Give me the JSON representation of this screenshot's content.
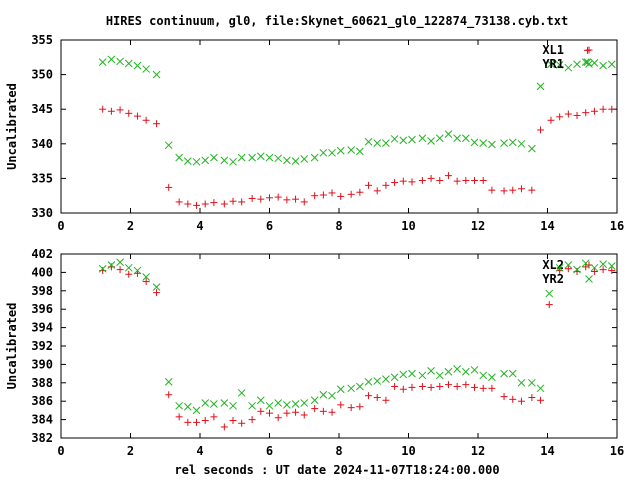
{
  "title": "HIRES continuum, gl0, file:Skynet_60621_gl0_122874_73138.cyb.txt",
  "xlabel": "rel seconds : UT date 2024-11-07T18:24:00.000",
  "colors": {
    "red": "#e0101a",
    "green": "#22b422"
  },
  "chart_data": [
    {
      "type": "scatter",
      "ylabel": "Uncalibrated",
      "xlim": [
        0,
        16
      ],
      "ylim": [
        330,
        355
      ],
      "xticks": [
        0,
        2,
        4,
        6,
        8,
        10,
        12,
        14,
        16
      ],
      "yticks": [
        330,
        335,
        340,
        345,
        350,
        355
      ],
      "legend_position": "top-right",
      "series": [
        {
          "name": "XL1",
          "marker": "plus",
          "color": "red",
          "x": [
            1.2,
            1.45,
            1.7,
            1.95,
            2.2,
            2.45,
            2.75,
            3.1,
            3.4,
            3.65,
            3.9,
            4.15,
            4.4,
            4.7,
            4.95,
            5.2,
            5.5,
            5.75,
            6.0,
            6.25,
            6.5,
            6.75,
            7.0,
            7.3,
            7.55,
            7.8,
            8.05,
            8.35,
            8.6,
            8.85,
            9.1,
            9.35,
            9.6,
            9.85,
            10.1,
            10.4,
            10.65,
            10.9,
            11.15,
            11.4,
            11.65,
            11.9,
            12.15,
            12.4,
            12.75,
            13.0,
            13.25,
            13.55,
            13.8,
            14.1,
            14.35,
            14.6,
            14.85,
            15.1,
            15.35,
            15.6,
            15.85
          ],
          "y": [
            345.0,
            344.7,
            344.9,
            344.4,
            344.0,
            343.4,
            342.9,
            333.7,
            331.6,
            331.3,
            331.1,
            331.3,
            331.5,
            331.3,
            331.7,
            331.6,
            332.1,
            332.0,
            332.2,
            332.3,
            331.9,
            332.0,
            331.6,
            332.5,
            332.6,
            332.9,
            332.4,
            332.7,
            333.0,
            334.0,
            333.2,
            334.0,
            334.4,
            334.6,
            334.5,
            334.7,
            335.0,
            334.7,
            335.4,
            334.6,
            334.7,
            334.7,
            334.7,
            333.3,
            333.2,
            333.3,
            333.5,
            333.3,
            342.0,
            343.4,
            343.9,
            344.3,
            344.1,
            344.5,
            344.7,
            345.0,
            345.0
          ],
          "extra_points": [
            [
              15.15,
              353.5
            ]
          ]
        },
        {
          "name": "YR1",
          "marker": "cross",
          "color": "green",
          "x": [
            1.2,
            1.45,
            1.7,
            1.95,
            2.2,
            2.45,
            2.75,
            3.1,
            3.4,
            3.65,
            3.9,
            4.15,
            4.4,
            4.7,
            4.95,
            5.2,
            5.5,
            5.75,
            6.0,
            6.25,
            6.5,
            6.75,
            7.0,
            7.3,
            7.55,
            7.8,
            8.05,
            8.35,
            8.6,
            8.85,
            9.1,
            9.35,
            9.6,
            9.85,
            10.1,
            10.4,
            10.65,
            10.9,
            11.15,
            11.4,
            11.65,
            11.9,
            12.15,
            12.4,
            12.75,
            13.0,
            13.25,
            13.55,
            13.8,
            14.1,
            14.35,
            14.6,
            14.85,
            15.1,
            15.35,
            15.6,
            15.85
          ],
          "y": [
            351.8,
            352.2,
            351.9,
            351.6,
            351.3,
            350.8,
            350.0,
            339.8,
            338.0,
            337.5,
            337.4,
            337.6,
            338.0,
            337.6,
            337.4,
            338.0,
            338.0,
            338.2,
            338.0,
            337.9,
            337.6,
            337.5,
            337.8,
            338.0,
            338.7,
            338.7,
            339.0,
            339.1,
            338.9,
            340.3,
            340.1,
            340.1,
            340.7,
            340.5,
            340.6,
            340.8,
            340.4,
            340.8,
            341.4,
            340.8,
            340.8,
            340.2,
            340.1,
            339.9,
            340.1,
            340.2,
            340.0,
            339.3,
            348.3,
            351.5,
            351.4,
            351.0,
            351.5,
            351.8,
            351.7,
            351.3,
            351.5
          ],
          "extra_points": [
            [
              15.15,
              351.8
            ]
          ]
        }
      ]
    },
    {
      "type": "scatter",
      "ylabel": "Uncalibrated",
      "xlim": [
        0,
        16
      ],
      "ylim": [
        382,
        402
      ],
      "xticks": [
        0,
        2,
        4,
        6,
        8,
        10,
        12,
        14,
        16
      ],
      "yticks": [
        382,
        384,
        386,
        388,
        390,
        392,
        394,
        396,
        398,
        400,
        402
      ],
      "legend_position": "top-right",
      "series": [
        {
          "name": "XL2",
          "marker": "plus",
          "color": "red",
          "x": [
            1.2,
            1.45,
            1.7,
            1.95,
            2.2,
            2.45,
            2.75,
            3.1,
            3.4,
            3.65,
            3.9,
            4.15,
            4.4,
            4.7,
            4.95,
            5.2,
            5.5,
            5.75,
            6.0,
            6.25,
            6.5,
            6.75,
            7.0,
            7.3,
            7.55,
            7.8,
            8.05,
            8.35,
            8.6,
            8.85,
            9.1,
            9.35,
            9.6,
            9.85,
            10.1,
            10.4,
            10.65,
            10.9,
            11.15,
            11.4,
            11.65,
            11.9,
            12.15,
            12.4,
            12.75,
            13.0,
            13.25,
            13.55,
            13.8,
            14.05,
            14.35,
            14.6,
            14.85,
            15.1,
            15.35,
            15.6,
            15.85
          ],
          "y": [
            400.2,
            400.6,
            400.3,
            399.8,
            399.9,
            399.0,
            397.8,
            386.7,
            384.3,
            383.7,
            383.7,
            383.9,
            384.3,
            383.2,
            383.9,
            383.6,
            384.0,
            384.9,
            384.7,
            384.2,
            384.7,
            384.8,
            384.5,
            385.2,
            384.9,
            384.8,
            385.6,
            385.3,
            385.4,
            386.6,
            386.4,
            386.1,
            387.6,
            387.3,
            387.5,
            387.6,
            387.5,
            387.6,
            387.8,
            387.6,
            387.8,
            387.5,
            387.4,
            387.4,
            386.5,
            386.2,
            386.0,
            386.4,
            386.1,
            396.5,
            400.2,
            400.4,
            400.1,
            400.6,
            400.1,
            400.3,
            400.2
          ]
        },
        {
          "name": "YR2",
          "marker": "cross",
          "color": "green",
          "x": [
            1.2,
            1.45,
            1.7,
            1.95,
            2.2,
            2.45,
            2.75,
            3.1,
            3.4,
            3.65,
            3.9,
            4.15,
            4.4,
            4.7,
            4.95,
            5.2,
            5.5,
            5.75,
            6.0,
            6.25,
            6.5,
            6.75,
            7.0,
            7.3,
            7.55,
            7.8,
            8.05,
            8.35,
            8.6,
            8.85,
            9.1,
            9.35,
            9.6,
            9.85,
            10.1,
            10.4,
            10.65,
            10.9,
            11.15,
            11.4,
            11.65,
            11.9,
            12.15,
            12.4,
            12.75,
            13.0,
            13.25,
            13.55,
            13.8,
            14.05,
            14.35,
            14.6,
            14.85,
            15.1,
            15.35,
            15.6,
            15.85
          ],
          "y": [
            400.4,
            400.8,
            401.1,
            400.5,
            400.2,
            399.5,
            398.4,
            388.1,
            385.5,
            385.4,
            385.0,
            385.8,
            385.7,
            385.8,
            385.5,
            386.9,
            385.5,
            386.1,
            385.5,
            385.8,
            385.6,
            385.7,
            385.8,
            386.1,
            386.7,
            386.6,
            387.3,
            387.4,
            387.6,
            388.1,
            388.2,
            388.4,
            388.6,
            388.9,
            389.0,
            388.8,
            389.3,
            388.8,
            389.2,
            389.5,
            389.2,
            389.4,
            388.8,
            388.6,
            389.0,
            389.0,
            388.0,
            388.0,
            387.4,
            397.7,
            400.5,
            400.8,
            400.3,
            401.0,
            400.5,
            400.9,
            400.7
          ]
        }
      ]
    }
  ]
}
